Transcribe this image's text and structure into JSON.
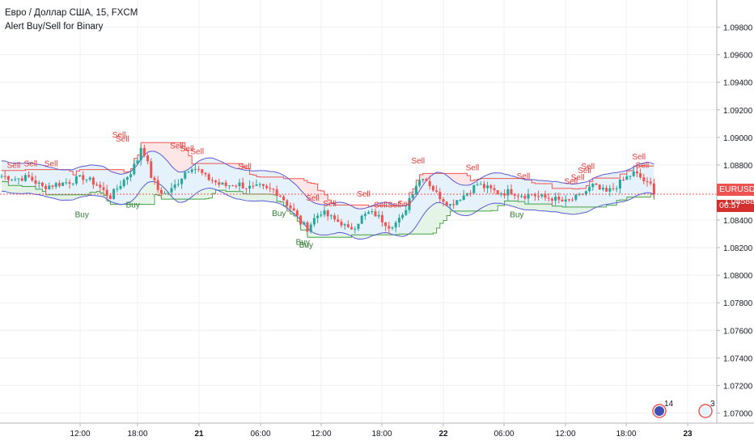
{
  "legend": {
    "symbol_line": "Евро / Доллар США, 15, FXCM",
    "indicator": "Alert Buy/Sell for Binary"
  },
  "price_tag": {
    "symbol": "EURUSD",
    "price": "1.08588",
    "countdown": "06:57",
    "color": "#ef5350"
  },
  "events": [
    {
      "count": "14"
    },
    {
      "count": "3"
    }
  ],
  "colors": {
    "up": "#26a69a",
    "down": "#ef5350",
    "band": "#5b5bd6",
    "upper_line": "#ef5350",
    "lower_line": "#43a047",
    "fill_red": "#fde3e3",
    "fill_blue": "#e3f1fb",
    "fill_green": "#e1f3e3",
    "sell_text": "#e53935",
    "buy_text": "#2e7d32",
    "grid": "#eef0f3",
    "axis_text": "#131722"
  },
  "chart_data": {
    "type": "candlestick",
    "title": "Евро / Доллар США, 15, FXCM",
    "indicator": "Alert Buy/Sell for Binary",
    "ylim": [
      1.0695,
      1.0995
    ],
    "y_ticks": [
      "1.09800",
      "1.09600",
      "1.09400",
      "1.09200",
      "1.09000",
      "1.08800",
      "1.08600",
      "1.08400",
      "1.08200",
      "1.08000",
      "1.07800",
      "1.07600",
      "1.07400",
      "1.07200",
      "1.07000"
    ],
    "x_ticks": [
      "12:00",
      "18:00",
      "21",
      "06:00",
      "12:00",
      "18:00",
      "22",
      "06:00",
      "12:00",
      "18:00",
      "23"
    ],
    "last_price": 1.08588,
    "close_path": [
      [
        0,
        1.0872
      ],
      [
        4,
        1.087
      ],
      [
        8,
        1.0871
      ],
      [
        12,
        1.0864
      ],
      [
        16,
        1.0866
      ],
      [
        20,
        1.0868
      ],
      [
        24,
        1.0871
      ],
      [
        28,
        1.0866
      ],
      [
        30,
        1.0861
      ],
      [
        32,
        1.0857
      ],
      [
        34,
        1.0863
      ],
      [
        36,
        1.0869
      ],
      [
        38,
        1.0875
      ],
      [
        40,
        1.0884
      ],
      [
        41,
        1.0893
      ],
      [
        42,
        1.0889
      ],
      [
        44,
        1.0872
      ],
      [
        46,
        1.0862
      ],
      [
        48,
        1.0859
      ],
      [
        50,
        1.0862
      ],
      [
        52,
        1.0868
      ],
      [
        54,
        1.0875
      ],
      [
        56,
        1.0879
      ],
      [
        58,
        1.0876
      ],
      [
        60,
        1.0871
      ],
      [
        62,
        1.0869
      ],
      [
        64,
        1.0866
      ],
      [
        66,
        1.0865
      ],
      [
        68,
        1.0866
      ],
      [
        70,
        1.0866
      ],
      [
        72,
        1.0864
      ],
      [
        74,
        1.0863
      ],
      [
        76,
        1.0864
      ],
      [
        78,
        1.0862
      ],
      [
        80,
        1.0862
      ],
      [
        82,
        1.0858
      ],
      [
        84,
        1.0852
      ],
      [
        86,
        1.0846
      ],
      [
        88,
        1.0838
      ],
      [
        90,
        1.0834
      ],
      [
        92,
        1.0841
      ],
      [
        94,
        1.0846
      ],
      [
        96,
        1.0843
      ],
      [
        98,
        1.084
      ],
      [
        100,
        1.0838
      ],
      [
        102,
        1.0833
      ],
      [
        104,
        1.0836
      ],
      [
        106,
        1.0842
      ],
      [
        108,
        1.0845
      ],
      [
        110,
        1.0844
      ],
      [
        112,
        1.084
      ],
      [
        114,
        1.0836
      ],
      [
        116,
        1.0838
      ],
      [
        118,
        1.0842
      ],
      [
        120,
        1.0856
      ],
      [
        122,
        1.0866
      ],
      [
        124,
        1.0872
      ],
      [
        126,
        1.0866
      ],
      [
        128,
        1.0859
      ],
      [
        130,
        1.0855
      ],
      [
        132,
        1.0851
      ],
      [
        134,
        1.0855
      ],
      [
        136,
        1.0858
      ],
      [
        138,
        1.0862
      ],
      [
        140,
        1.0866
      ],
      [
        142,
        1.0864
      ],
      [
        144,
        1.0862
      ],
      [
        146,
        1.086
      ],
      [
        148,
        1.086
      ],
      [
        150,
        1.0861
      ],
      [
        152,
        1.0859
      ],
      [
        154,
        1.0858
      ],
      [
        156,
        1.0859
      ],
      [
        158,
        1.0857
      ],
      [
        160,
        1.0856
      ],
      [
        162,
        1.0856
      ],
      [
        164,
        1.0854
      ],
      [
        166,
        1.0853
      ],
      [
        168,
        1.0855
      ],
      [
        170,
        1.0857
      ],
      [
        172,
        1.0861
      ],
      [
        174,
        1.0865
      ],
      [
        176,
        1.0862
      ],
      [
        178,
        1.086
      ],
      [
        180,
        1.0863
      ],
      [
        182,
        1.0867
      ],
      [
        184,
        1.0871
      ],
      [
        186,
        1.0874
      ],
      [
        188,
        1.0871
      ],
      [
        190,
        1.0866
      ],
      [
        192,
        1.0865
      ]
    ],
    "signals": [
      {
        "label": "Sell",
        "x": 3,
        "price": 1.0878
      },
      {
        "label": "Sell",
        "x": 8,
        "price": 1.0879
      },
      {
        "label": "Sell",
        "x": 14,
        "price": 1.0879
      },
      {
        "label": "Sell",
        "x": 34,
        "price": 1.09
      },
      {
        "label": "Sell",
        "x": 35,
        "price": 1.0897
      },
      {
        "label": "Sell",
        "x": 51,
        "price": 1.0892
      },
      {
        "label": "Sell",
        "x": 54,
        "price": 1.089
      },
      {
        "label": "Sell",
        "x": 57,
        "price": 1.0888
      },
      {
        "label": "Sell",
        "x": 71,
        "price": 1.0877
      },
      {
        "label": "Sell",
        "x": 91,
        "price": 1.0854
      },
      {
        "label": "Sell",
        "x": 96,
        "price": 1.085
      },
      {
        "label": "Sell",
        "x": 106,
        "price": 1.0857
      },
      {
        "label": "Sell",
        "x": 111,
        "price": 1.0849
      },
      {
        "label": "Sell",
        "x": 115,
        "price": 1.0849
      },
      {
        "label": "Sell",
        "x": 118,
        "price": 1.085
      },
      {
        "label": "Sell",
        "x": 122,
        "price": 1.0881
      },
      {
        "label": "Sell",
        "x": 138,
        "price": 1.0876
      },
      {
        "label": "Sell",
        "x": 153,
        "price": 1.087
      },
      {
        "label": "Sell",
        "x": 167,
        "price": 1.0866
      },
      {
        "label": "Sell",
        "x": 169,
        "price": 1.0869
      },
      {
        "label": "Sell",
        "x": 171,
        "price": 1.0874
      },
      {
        "label": "Sell",
        "x": 172,
        "price": 1.0877
      },
      {
        "label": "Sell",
        "x": 187,
        "price": 1.0884
      },
      {
        "label": "Sell",
        "x": 188,
        "price": 1.0878
      },
      {
        "label": "Buy",
        "x": 23,
        "price": 1.0842
      },
      {
        "label": "Buy",
        "x": 38,
        "price": 1.0849
      },
      {
        "label": "Buy",
        "x": 81,
        "price": 1.0843
      },
      {
        "label": "Buy",
        "x": 88,
        "price": 1.0822
      },
      {
        "label": "Buy",
        "x": 89,
        "price": 1.082
      },
      {
        "label": "Buy",
        "x": 151,
        "price": 1.0842
      }
    ]
  }
}
